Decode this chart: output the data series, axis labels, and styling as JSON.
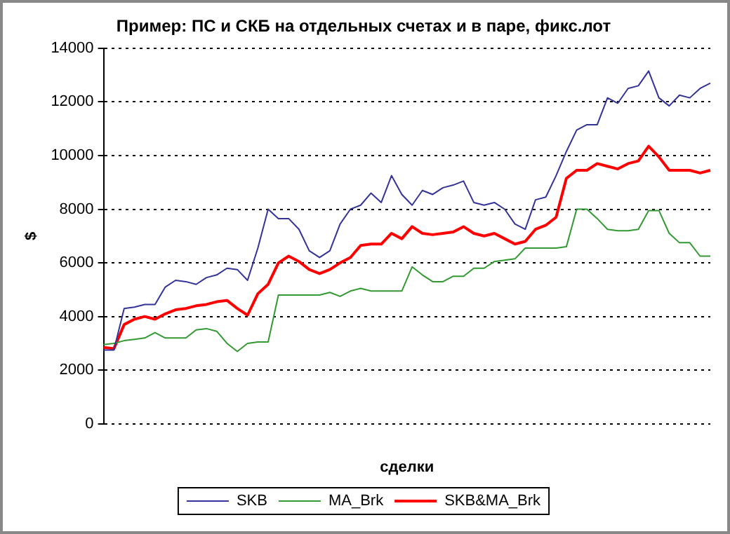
{
  "chart_data": {
    "type": "line",
    "title": "Пример: ПС и СКБ на отдельных счетах и в паре, фикс.лот",
    "xlabel": "сделки",
    "ylabel": "$",
    "categories": [
      null,
      null,
      null,
      null,
      null,
      null,
      null,
      null,
      null,
      null,
      null,
      null,
      null,
      null,
      null,
      null,
      null,
      null,
      null,
      null,
      null,
      null,
      null,
      null,
      null,
      null,
      null,
      null,
      null,
      null,
      null,
      null,
      null,
      null,
      null,
      null,
      null,
      null,
      null,
      null,
      null,
      null,
      null,
      null,
      null,
      null,
      null,
      null,
      null,
      null,
      null,
      null,
      null,
      null,
      null,
      null,
      null,
      null,
      null,
      null
    ],
    "series": [
      {
        "name": "SKB",
        "color": "#333399",
        "values": [
          2750,
          2750,
          4300,
          4350,
          4450,
          4450,
          5100,
          5350,
          5300,
          5200,
          5450,
          5550,
          5800,
          5750,
          5350,
          6550,
          8000,
          7650,
          7650,
          7250,
          6450,
          6200,
          6450,
          7450,
          8000,
          8150,
          8600,
          8250,
          9250,
          8550,
          8150,
          8700,
          8550,
          8800,
          8900,
          9050,
          8250,
          8150,
          8250,
          8000,
          7450,
          7250,
          8350,
          8450,
          9250,
          10150,
          10950,
          11150,
          11150,
          12150,
          11950,
          12500,
          12600,
          13150,
          12150,
          11850,
          12250,
          12150,
          12500,
          12700
        ]
      },
      {
        "name": "MA_Brk",
        "color": "#339933",
        "values": [
          2950,
          3000,
          3100,
          3150,
          3200,
          3400,
          3200,
          3200,
          3200,
          3500,
          3550,
          3450,
          3000,
          2700,
          3000,
          3050,
          3050,
          4800,
          4800,
          4800,
          4800,
          4800,
          4900,
          4750,
          4950,
          5050,
          4950,
          4950,
          4950,
          4950,
          5850,
          5550,
          5300,
          5300,
          5500,
          5500,
          5800,
          5800,
          6050,
          6100,
          6150,
          6550,
          6550,
          6550,
          6550,
          6600,
          8000,
          8000,
          7650,
          7250,
          7200,
          7200,
          7250,
          7950,
          7950,
          7100,
          6750,
          6750,
          6250,
          6250
        ]
      },
      {
        "name": "SKB&MA_Brk",
        "color": "#ff0000",
        "values": [
          2850,
          2800,
          3700,
          3900,
          4000,
          3900,
          4100,
          4250,
          4300,
          4400,
          4450,
          4550,
          4600,
          4300,
          4050,
          4850,
          5200,
          6000,
          6250,
          6050,
          5750,
          5600,
          5750,
          6000,
          6200,
          6650,
          6700,
          6700,
          7100,
          6900,
          7350,
          7100,
          7050,
          7100,
          7150,
          7350,
          7100,
          7000,
          7100,
          6900,
          6700,
          6800,
          7250,
          7400,
          7700,
          9150,
          9450,
          9450,
          9700,
          9600,
          9500,
          9700,
          9800,
          10350,
          9950,
          9450,
          9450,
          9450,
          9350,
          9450
        ]
      }
    ],
    "ylim": [
      0,
      14000
    ],
    "yticks": [
      0,
      2000,
      4000,
      6000,
      8000,
      10000,
      12000,
      14000
    ],
    "grid": "y",
    "legend": "bottom",
    "marker": "none",
    "line_style": "solid"
  }
}
